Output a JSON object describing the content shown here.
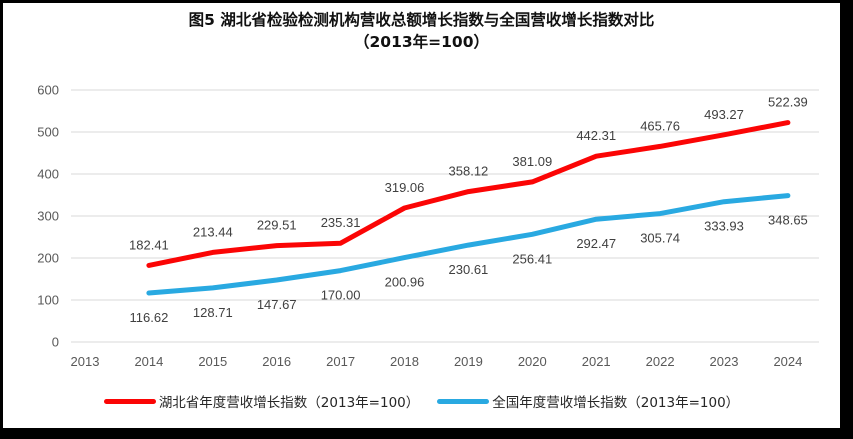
{
  "title": {
    "line1": "图5 湖北省检验检测机构营收总额增长指数与全国营收增长指数对比",
    "line2": "（2013年=100）"
  },
  "colors": {
    "red_series": "#fb0505",
    "blue_series": "#29a9e1",
    "gridline": "#d9d9d9",
    "axis_text": "#595959",
    "data_label_text": "#404040",
    "frame_border": "#000000",
    "background": "#ffffff"
  },
  "chart_data": {
    "type": "line",
    "title": "图5 湖北省检验检测机构营收总额增长指数与全国营收增长指数对比（2013年=100）",
    "categories": [
      "2013",
      "2014",
      "2015",
      "2016",
      "2017",
      "2018",
      "2019",
      "2020",
      "2021",
      "2022",
      "2023",
      "2024"
    ],
    "series": [
      {
        "name": "湖北省年度营收增长指数（2013年=100）",
        "color": "#fb0505",
        "label_position": "above",
        "values": [
          null,
          182.41,
          213.44,
          229.51,
          235.31,
          319.06,
          358.12,
          381.09,
          442.31,
          465.76,
          493.27,
          522.39
        ]
      },
      {
        "name": "全国年度营收增长指数（2013年=100）",
        "color": "#29a9e1",
        "label_position": "below",
        "values": [
          null,
          116.62,
          128.71,
          147.67,
          170.0,
          200.96,
          230.61,
          256.41,
          292.47,
          305.74,
          333.93,
          348.65
        ]
      }
    ],
    "ylim": [
      0,
      600
    ],
    "yticks": [
      0,
      100,
      200,
      300,
      400,
      500,
      600
    ],
    "grid": true,
    "data_labels": true,
    "label_decimals": 2,
    "legend_position": "bottom",
    "xlabel": "",
    "ylabel": ""
  }
}
